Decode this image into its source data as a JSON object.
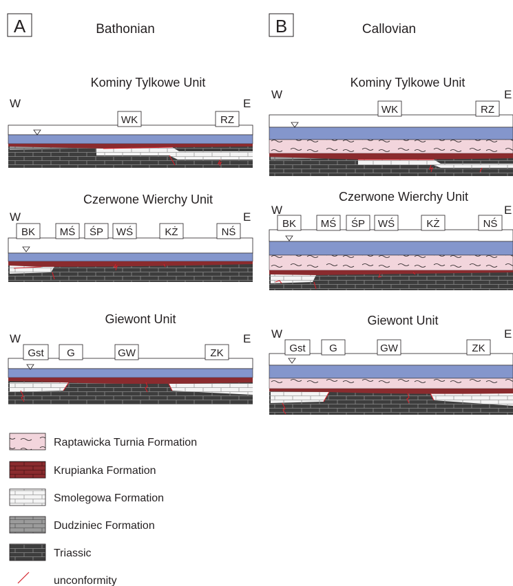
{
  "panels": [
    {
      "letter": "A",
      "period": "Bathonian",
      "sections": [
        {
          "title": "Kominy Tylkowe Unit",
          "west": "W",
          "east": "E",
          "localities": [
            "WK",
            "RZ"
          ]
        },
        {
          "title": "Czerwone Wierchy Unit",
          "west": "W",
          "east": "E",
          "localities": [
            "BK",
            "MŚ",
            "ŚP",
            "WŚ",
            "KŻ",
            "NŚ"
          ]
        },
        {
          "title": "Giewont Unit",
          "west": "W",
          "east": "E",
          "localities": [
            "Gst",
            "G",
            "GW",
            "ZK"
          ]
        }
      ]
    },
    {
      "letter": "B",
      "period": "Callovian",
      "sections": [
        {
          "title": "Kominy Tylkowe Unit",
          "west": "W",
          "east": "E",
          "localities": [
            "WK",
            "RZ"
          ]
        },
        {
          "title": "Czerwone Wierchy Unit",
          "west": "W",
          "east": "E",
          "localities": [
            "BK",
            "MŚ",
            "ŚP",
            "WŚ",
            "KŻ",
            "NŚ"
          ]
        },
        {
          "title": "Giewont Unit",
          "west": "W",
          "east": "E",
          "localities": [
            "Gst",
            "G",
            "GW",
            "ZK"
          ]
        }
      ]
    }
  ],
  "legend": [
    {
      "label": "Raptawicka Turnia Formation",
      "pattern": "wavy",
      "color": "#f2d5dc"
    },
    {
      "label": "Krupianka Formation",
      "pattern": "brick",
      "color": "#8a2b2e"
    },
    {
      "label": "Smolegowa Formation",
      "pattern": "brick",
      "color": "#f4f4f4"
    },
    {
      "label": "Dudziniec Formation",
      "pattern": "brick",
      "color": "#9b9b9b"
    },
    {
      "label": "Triassic",
      "pattern": "brick",
      "color": "#3d3d3d"
    },
    {
      "label": "unconformity",
      "pattern": "line",
      "color": "#d4202a"
    }
  ],
  "colors": {
    "water_blue": "#8496cc",
    "raptawicka_pink": "#f2d5dc",
    "krupianka_red": "#8a2b2e",
    "smolegowa_white": "#f4f4f4",
    "dudziniec_grey": "#9b9b9b",
    "triassic_dark": "#3d3d3d",
    "unconformity_red": "#d4202a"
  }
}
